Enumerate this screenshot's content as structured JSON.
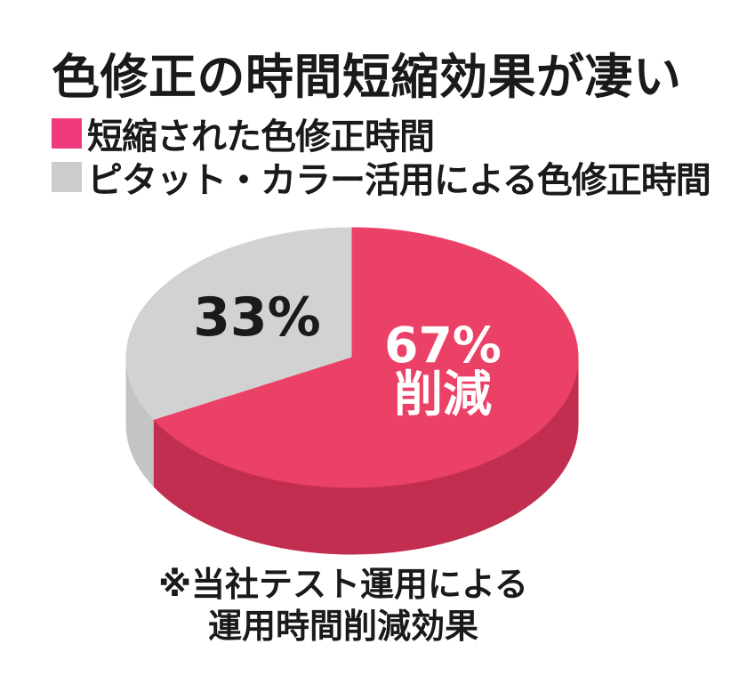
{
  "page": {
    "background": "#ffffff",
    "text_color": "#1a1a1a"
  },
  "title": "色修正の時間短縮効果が凄い",
  "legend": {
    "items": [
      {
        "label": "短縮された色修正時間",
        "color": "#EF3A7D"
      },
      {
        "label": "ピタット・カラー活用による色修正時間",
        "color": "#CCCCCC"
      }
    ]
  },
  "chart_data": {
    "type": "pie",
    "style": "3d",
    "start_angle": "12-o-clock",
    "title": "色修正の時間短縮効果が凄い",
    "legend_position": "top-left",
    "slices": [
      {
        "name": "短縮された色修正時間",
        "value": 67,
        "unit": "%",
        "direction": "clockwise-from-top",
        "label_lines": [
          "67%",
          "削減"
        ],
        "label_color": "#ffffff",
        "top_color": "#EC4167",
        "side_color": "#C22E4F",
        "cut_face_color": "#E63E63"
      },
      {
        "name": "ピタット・カラー活用による色修正時間",
        "value": 33,
        "unit": "%",
        "direction": "counterclockwise-from-top",
        "label_lines": [
          "33%"
        ],
        "label_color": "#1a1a1a",
        "top_color": "#D2D2D2",
        "side_color": "#C4C4C4"
      }
    ]
  },
  "footnote": {
    "line1": "※当社テスト運用による",
    "line2": "運用時間削減効果"
  }
}
